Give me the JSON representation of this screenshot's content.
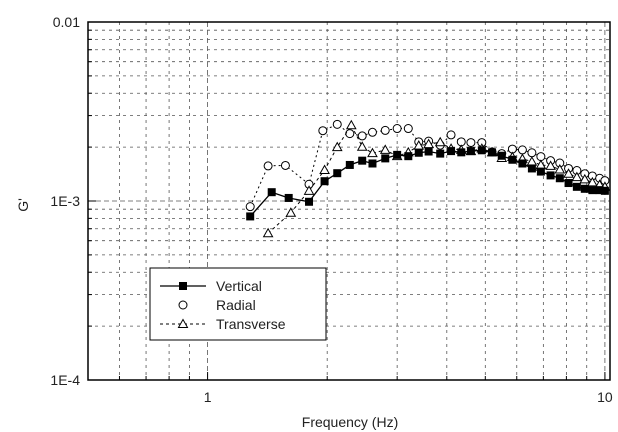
{
  "chart_data": {
    "type": "scatter",
    "title": "",
    "xlabel": "Frequency (Hz)",
    "ylabel": "G'",
    "x_scale": "log",
    "y_scale": "log",
    "xlim": [
      0.5,
      10.3
    ],
    "ylim": [
      0.0001,
      0.01
    ],
    "x_ticks": [
      {
        "value": 1,
        "label": "1"
      },
      {
        "value": 10,
        "label": "10"
      }
    ],
    "y_ticks": [
      {
        "value": 0.0001,
        "label": "1E-4"
      },
      {
        "value": 0.001,
        "label": "1E-3"
      },
      {
        "value": 0.01,
        "label": "0.01"
      }
    ],
    "grid": true,
    "grid_style": "dashed",
    "legend_position": "bottom-left",
    "series": [
      {
        "name": "Vertical",
        "marker": "filled-square",
        "color": "#000000",
        "points": [
          [
            1.28,
            0.00082
          ],
          [
            1.45,
            0.00112
          ],
          [
            1.6,
            0.00104
          ],
          [
            1.8,
            0.00099
          ],
          [
            1.97,
            0.00129
          ],
          [
            2.12,
            0.00143
          ],
          [
            2.28,
            0.00159
          ],
          [
            2.45,
            0.00168
          ],
          [
            2.6,
            0.00162
          ],
          [
            2.8,
            0.00173
          ],
          [
            3.0,
            0.00181
          ],
          [
            3.2,
            0.00178
          ],
          [
            3.4,
            0.00186
          ],
          [
            3.6,
            0.00189
          ],
          [
            3.85,
            0.00184
          ],
          [
            4.1,
            0.0019
          ],
          [
            4.35,
            0.00187
          ],
          [
            4.6,
            0.0019
          ],
          [
            4.9,
            0.00192
          ],
          [
            5.2,
            0.00187
          ],
          [
            5.5,
            0.00179
          ],
          [
            5.85,
            0.0017
          ],
          [
            6.2,
            0.00162
          ],
          [
            6.55,
            0.00152
          ],
          [
            6.9,
            0.00146
          ],
          [
            7.3,
            0.00139
          ],
          [
            7.7,
            0.00134
          ],
          [
            8.1,
            0.00126
          ],
          [
            8.5,
            0.0012
          ],
          [
            8.9,
            0.00117
          ],
          [
            9.3,
            0.00115
          ],
          [
            9.7,
            0.00115
          ],
          [
            10.0,
            0.00114
          ]
        ]
      },
      {
        "name": "Radial",
        "marker": "open-circle",
        "color": "#000000",
        "points": [
          [
            1.28,
            0.00093
          ],
          [
            1.42,
            0.00157
          ],
          [
            1.57,
            0.00158
          ],
          [
            1.8,
            0.00124
          ],
          [
            1.95,
            0.00247
          ],
          [
            2.12,
            0.00268
          ],
          [
            2.28,
            0.00238
          ],
          [
            2.45,
            0.00231
          ],
          [
            2.6,
            0.00242
          ],
          [
            2.8,
            0.00248
          ],
          [
            3.0,
            0.00254
          ],
          [
            3.2,
            0.00254
          ],
          [
            3.4,
            0.00214
          ],
          [
            3.6,
            0.00216
          ],
          [
            3.85,
            0.00205
          ],
          [
            4.1,
            0.00234
          ],
          [
            4.35,
            0.00214
          ],
          [
            4.6,
            0.00212
          ],
          [
            4.9,
            0.00212
          ],
          [
            5.2,
            0.00188
          ],
          [
            5.5,
            0.00184
          ],
          [
            5.85,
            0.00195
          ],
          [
            6.2,
            0.00193
          ],
          [
            6.55,
            0.00186
          ],
          [
            6.9,
            0.00177
          ],
          [
            7.3,
            0.00168
          ],
          [
            7.7,
            0.00163
          ],
          [
            8.1,
            0.00152
          ],
          [
            8.5,
            0.00148
          ],
          [
            8.9,
            0.00142
          ],
          [
            9.3,
            0.00138
          ],
          [
            9.7,
            0.00134
          ],
          [
            10.0,
            0.0013
          ]
        ]
      },
      {
        "name": "Transverse",
        "marker": "open-triangle",
        "color": "#000000",
        "points": [
          [
            1.42,
            0.00066
          ],
          [
            1.62,
            0.00086
          ],
          [
            1.8,
            0.00114
          ],
          [
            1.97,
            0.00149
          ],
          [
            2.12,
            0.002
          ],
          [
            2.3,
            0.00265
          ],
          [
            2.45,
            0.00201
          ],
          [
            2.6,
            0.00185
          ],
          [
            2.8,
            0.00193
          ],
          [
            3.0,
            0.00178
          ],
          [
            3.2,
            0.00187
          ],
          [
            3.4,
            0.00204
          ],
          [
            3.6,
            0.00208
          ],
          [
            3.85,
            0.00213
          ],
          [
            4.1,
            0.00196
          ],
          [
            4.35,
            0.00193
          ],
          [
            4.6,
            0.0019
          ],
          [
            4.9,
            0.00196
          ],
          [
            5.2,
            0.00187
          ],
          [
            5.5,
            0.00174
          ],
          [
            5.85,
            0.00176
          ],
          [
            6.2,
            0.00172
          ],
          [
            6.55,
            0.00166
          ],
          [
            6.9,
            0.00159
          ],
          [
            7.3,
            0.00157
          ],
          [
            7.7,
            0.0015
          ],
          [
            8.1,
            0.00142
          ],
          [
            8.5,
            0.00136
          ],
          [
            8.9,
            0.00132
          ],
          [
            9.3,
            0.00127
          ],
          [
            9.7,
            0.00123
          ],
          [
            10.0,
            0.0012
          ]
        ]
      }
    ]
  }
}
